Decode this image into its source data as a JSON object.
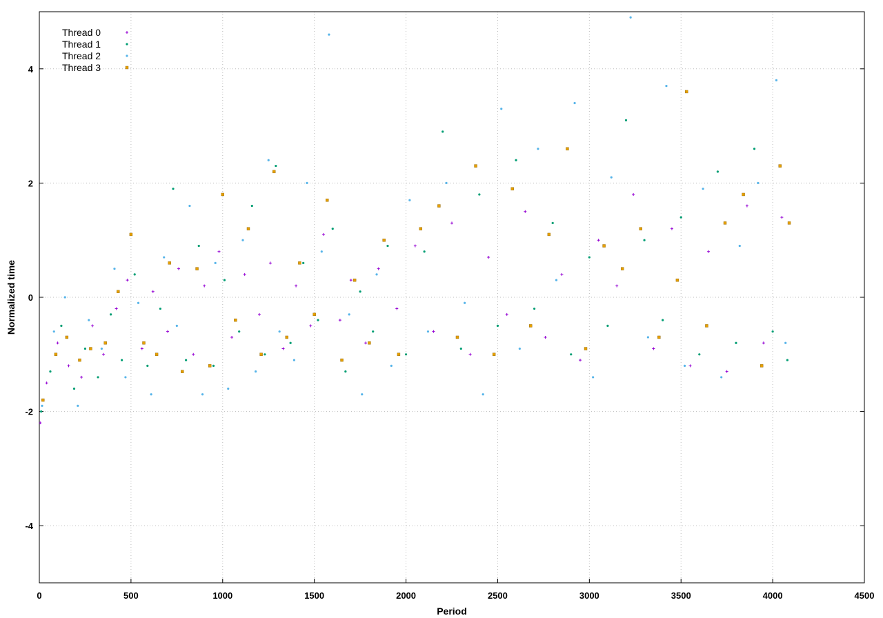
{
  "chart_data": {
    "type": "scatter",
    "x_label": "Period",
    "y_label": "Normalized time",
    "xlim": [
      0,
      4500
    ],
    "xticks": [
      0,
      500,
      1000,
      1500,
      2000,
      2500,
      3000,
      3500,
      4000,
      4500
    ],
    "ylim": [
      -5,
      5
    ],
    "yticks": [
      -4,
      -2,
      0,
      2,
      4
    ],
    "grid": true,
    "legend": "top-left",
    "series": [
      {
        "name": "Thread 0",
        "color": "#9400d3",
        "marker": "plus",
        "x": [
          5,
          40,
          100,
          160,
          230,
          290,
          350,
          420,
          480,
          560,
          620,
          700,
          760,
          840,
          900,
          980,
          1050,
          1120,
          1200,
          1260,
          1330,
          1400,
          1480,
          1550,
          1640,
          1700,
          1780,
          1850,
          1950,
          2050,
          2150,
          2250,
          2350,
          2450,
          2550,
          2650,
          2760,
          2850,
          2950,
          3050,
          3150,
          3240,
          3350,
          3450,
          3550,
          3650,
          3750,
          3860,
          3950,
          4050
        ],
        "values": [
          -2.2,
          -1.5,
          -0.8,
          -1.2,
          -1.4,
          -0.5,
          -1.0,
          -0.2,
          0.3,
          -0.9,
          0.1,
          -0.6,
          0.5,
          -1.0,
          0.2,
          0.8,
          -0.7,
          0.4,
          -0.3,
          0.6,
          -0.9,
          0.2,
          -0.5,
          1.1,
          -0.4,
          0.3,
          -0.8,
          0.5,
          -0.2,
          0.9,
          -0.6,
          1.3,
          -1.0,
          0.7,
          -0.3,
          1.5,
          -0.7,
          0.4,
          -1.1,
          1.0,
          0.2,
          1.8,
          -0.9,
          1.2,
          -1.2,
          0.8,
          -1.3,
          1.6,
          -0.8,
          1.4
        ]
      },
      {
        "name": "Thread 1",
        "color": "#009e73",
        "marker": "dot",
        "x": [
          10,
          60,
          120,
          190,
          250,
          320,
          390,
          450,
          520,
          590,
          660,
          730,
          800,
          870,
          950,
          1010,
          1090,
          1160,
          1230,
          1290,
          1370,
          1440,
          1520,
          1600,
          1670,
          1750,
          1820,
          1900,
          2000,
          2100,
          2200,
          2300,
          2400,
          2500,
          2600,
          2700,
          2800,
          2900,
          3000,
          3100,
          3200,
          3300,
          3400,
          3500,
          3600,
          3700,
          3800,
          3900,
          4000,
          4080
        ],
        "values": [
          -2.0,
          -1.3,
          -0.5,
          -1.6,
          -0.9,
          -1.4,
          -0.3,
          -1.1,
          0.4,
          -1.2,
          -0.2,
          1.9,
          -1.1,
          0.9,
          -1.2,
          0.3,
          -0.6,
          1.6,
          -1.0,
          2.3,
          -0.8,
          0.6,
          -0.4,
          1.2,
          -1.3,
          0.1,
          -0.6,
          0.9,
          -1.0,
          0.8,
          2.9,
          -0.9,
          1.8,
          -0.5,
          2.4,
          -0.2,
          1.3,
          -1.0,
          0.7,
          -0.5,
          3.1,
          1.0,
          -0.4,
          1.4,
          -1.0,
          2.2,
          -0.8,
          2.6,
          -0.6,
          -1.1
        ]
      },
      {
        "name": "Thread 2",
        "color": "#56b4e9",
        "marker": "dot",
        "x": [
          15,
          80,
          140,
          210,
          270,
          340,
          410,
          470,
          540,
          610,
          680,
          750,
          820,
          890,
          960,
          1030,
          1110,
          1180,
          1250,
          1310,
          1390,
          1460,
          1540,
          1580,
          1690,
          1760,
          1840,
          1920,
          2020,
          2120,
          2220,
          2320,
          2420,
          2520,
          2620,
          2720,
          2820,
          2920,
          3020,
          3120,
          3225,
          3320,
          3420,
          3520,
          3620,
          3720,
          3820,
          3920,
          4020,
          4070
        ],
        "values": [
          -1.9,
          -0.6,
          0.0,
          -1.9,
          -0.4,
          -0.9,
          0.5,
          -1.4,
          -0.1,
          -1.7,
          0.7,
          -0.5,
          1.6,
          -1.7,
          0.6,
          -1.6,
          1.0,
          -1.3,
          2.4,
          -0.6,
          -1.1,
          2.0,
          0.8,
          4.6,
          -0.3,
          -1.7,
          0.4,
          -1.2,
          1.7,
          -0.6,
          2.0,
          -0.1,
          -1.7,
          3.3,
          -0.9,
          2.6,
          0.3,
          3.4,
          -1.4,
          2.1,
          4.9,
          -0.7,
          3.7,
          -1.2,
          1.9,
          -1.4,
          0.9,
          2.0,
          3.8,
          -0.8
        ]
      },
      {
        "name": "Thread 3",
        "color": "#e69f00",
        "marker": "square",
        "x": [
          20,
          90,
          150,
          220,
          280,
          360,
          430,
          500,
          570,
          640,
          710,
          780,
          860,
          930,
          1000,
          1070,
          1140,
          1210,
          1280,
          1350,
          1420,
          1500,
          1570,
          1650,
          1720,
          1800,
          1880,
          1960,
          2080,
          2180,
          2280,
          2380,
          2480,
          2580,
          2680,
          2780,
          2880,
          2980,
          3080,
          3180,
          3280,
          3380,
          3480,
          3530,
          3640,
          3740,
          3840,
          3940,
          4040,
          4090
        ],
        "values": [
          -1.8,
          -1.0,
          -0.7,
          -1.1,
          -0.9,
          -0.8,
          0.1,
          1.1,
          -0.8,
          -1.0,
          0.6,
          -1.3,
          0.5,
          -1.2,
          1.8,
          -0.4,
          1.2,
          -1.0,
          2.2,
          -0.7,
          0.6,
          -0.3,
          1.7,
          -1.1,
          0.3,
          -0.8,
          1.0,
          -1.0,
          1.2,
          1.6,
          -0.7,
          2.3,
          -1.0,
          1.9,
          -0.5,
          1.1,
          2.6,
          -0.9,
          0.9,
          0.5,
          1.2,
          -0.7,
          0.3,
          3.6,
          -0.5,
          1.3,
          1.8,
          -1.2,
          2.3,
          1.3
        ]
      }
    ]
  }
}
